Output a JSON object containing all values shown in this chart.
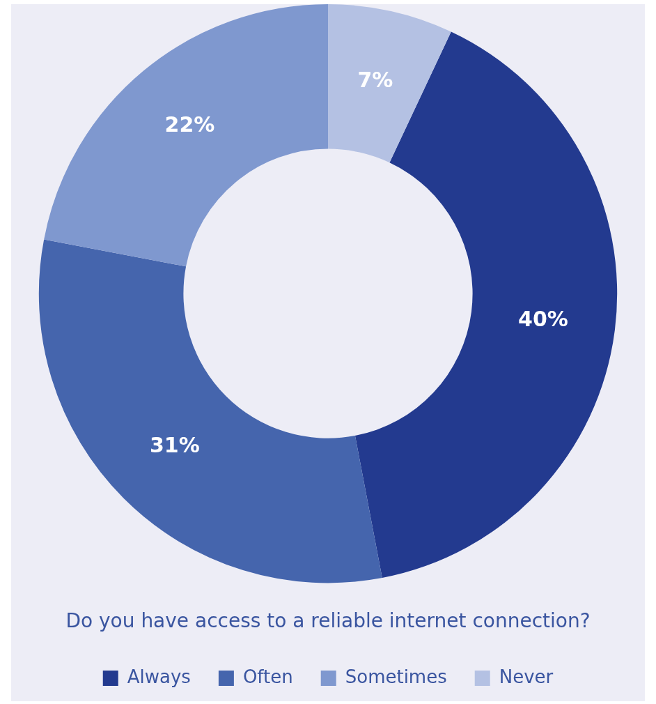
{
  "chart_data": {
    "type": "donut",
    "title": "Do you have access to a reliable internet connection?",
    "categories": [
      "Always",
      "Often",
      "Sometimes",
      "Never"
    ],
    "values": [
      40,
      31,
      22,
      7
    ],
    "colors": [
      "#233a8f",
      "#4565ad",
      "#7f98cf",
      "#b4c1e3"
    ],
    "value_labels": [
      "40%",
      "31%",
      "22%",
      "7%"
    ],
    "legend": "bottom"
  }
}
